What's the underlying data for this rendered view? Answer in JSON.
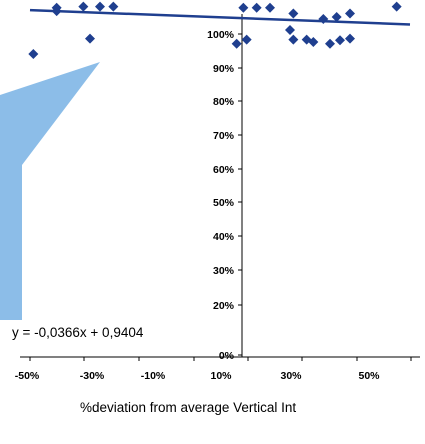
{
  "chart_data": {
    "type": "scatter",
    "title": "",
    "xlabel": "%deviation from average Vertical Int",
    "ylabel": "",
    "xlim": [
      -0.6,
      0.6
    ],
    "ylim": [
      0,
      1
    ],
    "x_ticks": [
      "-50%",
      "-30%",
      "-10%",
      "10%",
      "30%",
      "50%"
    ],
    "y_ticks": [
      "0%",
      "20%",
      "30%",
      "40%",
      "50%",
      "60%",
      "70%",
      "80%",
      "90%",
      "100%"
    ],
    "series": [
      {
        "marker": "diamond",
        "color": "#1f3f8f",
        "points": [
          {
            "x": -0.49,
            "y": 0.995
          },
          {
            "x": -0.49,
            "y": 0.985
          },
          {
            "x": -0.41,
            "y": 0.998
          },
          {
            "x": -0.36,
            "y": 0.998
          },
          {
            "x": -0.32,
            "y": 0.998
          },
          {
            "x": -0.56,
            "y": 0.86
          },
          {
            "x": -0.39,
            "y": 0.905
          },
          {
            "x": 0.07,
            "y": 0.995
          },
          {
            "x": 0.11,
            "y": 0.995
          },
          {
            "x": 0.15,
            "y": 0.995
          },
          {
            "x": 0.22,
            "y": 0.978
          },
          {
            "x": 0.31,
            "y": 0.962
          },
          {
            "x": 0.35,
            "y": 0.968
          },
          {
            "x": 0.39,
            "y": 0.978
          },
          {
            "x": 0.53,
            "y": 0.998
          },
          {
            "x": 0.21,
            "y": 0.93
          },
          {
            "x": 0.05,
            "y": 0.89
          },
          {
            "x": 0.08,
            "y": 0.902
          },
          {
            "x": 0.22,
            "y": 0.902
          },
          {
            "x": 0.26,
            "y": 0.902
          },
          {
            "x": 0.28,
            "y": 0.895
          },
          {
            "x": 0.33,
            "y": 0.89
          },
          {
            "x": 0.36,
            "y": 0.9
          },
          {
            "x": 0.39,
            "y": 0.905
          }
        ]
      }
    ],
    "trendline": {
      "slope": -0.0366,
      "intercept": 0.9404,
      "color": "#1f3f8f"
    },
    "equation": "y = -0,0366x + 0,9404",
    "annotation_color": "#7fb6e6"
  }
}
